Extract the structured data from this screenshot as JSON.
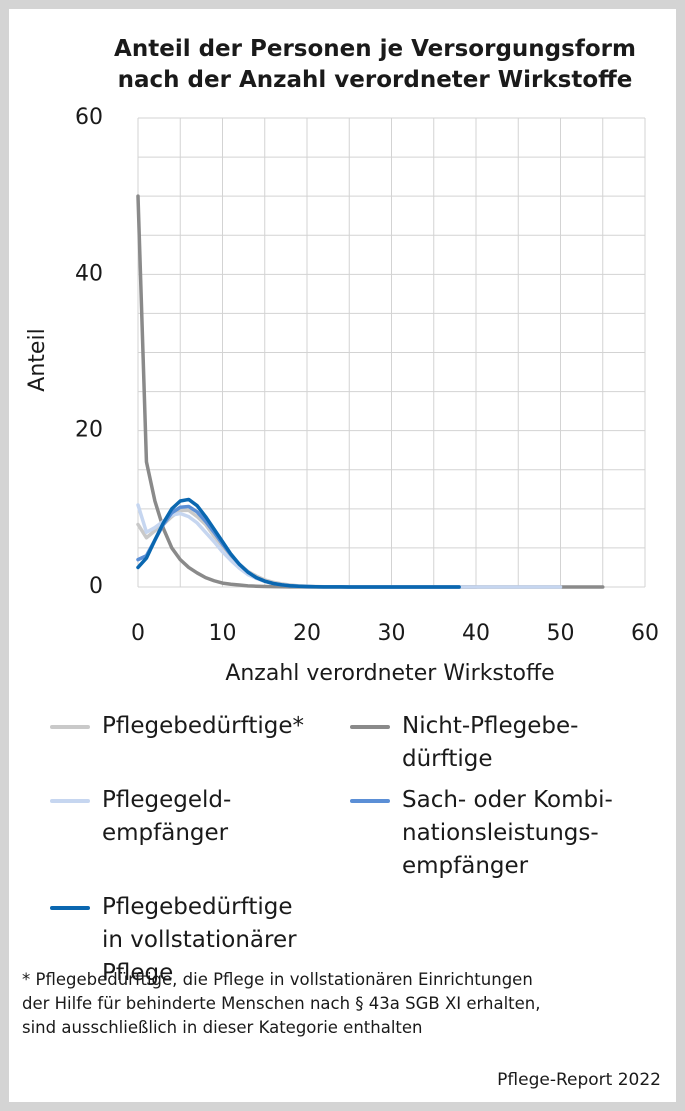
{
  "chart_data": {
    "type": "line",
    "title": "Anteil der Personen je Versorgungsform\nnach der Anzahl verordneter Wirkstoffe",
    "x_label": "Anzahl verordneter Wirkstoffe",
    "y_label": "Anteil",
    "x": [
      0,
      1,
      2,
      3,
      4,
      5,
      6,
      7,
      8,
      9,
      10,
      11,
      12,
      13,
      14,
      15,
      16,
      17,
      18,
      19,
      20,
      21,
      22,
      23,
      24,
      25,
      26,
      27,
      28,
      29,
      30,
      31,
      32,
      33,
      34,
      35,
      36,
      37,
      38,
      39,
      40,
      41,
      42,
      43,
      44,
      45,
      46,
      47,
      48,
      49,
      50,
      51,
      52,
      53,
      54,
      55
    ],
    "xlim": [
      0,
      60
    ],
    "xticks": [
      0,
      10,
      20,
      30,
      40,
      50,
      60
    ],
    "ylim": [
      0,
      60
    ],
    "yticks": [
      0,
      20,
      40,
      60
    ],
    "xgrid": [
      0,
      5,
      10,
      15,
      20,
      25,
      30,
      35,
      40,
      45,
      50,
      55,
      60
    ],
    "ygrid": [
      0,
      5,
      10,
      15,
      20,
      25,
      30,
      35,
      40,
      45,
      50,
      55,
      60
    ],
    "series": [
      {
        "name": "Pflegebedürftige*",
        "color": "#c9c9c9",
        "values": [
          8,
          6.3,
          7.2,
          8,
          9,
          9.8,
          9.8,
          9,
          8,
          6.5,
          5.2,
          4,
          2.9,
          2,
          1.4,
          0.9,
          0.6,
          0.4,
          0.25,
          0.15,
          0.1,
          0.06,
          0.04,
          0.02,
          0.01,
          0.01,
          0,
          0,
          0,
          0,
          0,
          0,
          0,
          0,
          0,
          0,
          0,
          0,
          0,
          0,
          0,
          null,
          null,
          null,
          null,
          null,
          null,
          null,
          null,
          null,
          null,
          null,
          null,
          null,
          null,
          null
        ]
      },
      {
        "name": "Nicht-Pflegebe-\ndürftige",
        "color": "#8a8a8a",
        "values": [
          50,
          16,
          11,
          7.5,
          5,
          3.5,
          2.5,
          1.8,
          1.2,
          0.8,
          0.5,
          0.35,
          0.25,
          0.15,
          0.1,
          0.07,
          0.05,
          0.03,
          0.02,
          0.01,
          0,
          0,
          0,
          0,
          0,
          0,
          0,
          0,
          0,
          0,
          0,
          0,
          0,
          0,
          0,
          0,
          0,
          0,
          0,
          0,
          0,
          0,
          0,
          0,
          0,
          0,
          0,
          0,
          0,
          0,
          0,
          0,
          0,
          0,
          0,
          0
        ]
      },
      {
        "name": "Pflegegeld-\nempfänger",
        "color": "#c6d6f0",
        "values": [
          10.5,
          7,
          7.6,
          8.4,
          9.2,
          9.4,
          9,
          8.2,
          7,
          5.8,
          4.5,
          3.4,
          2.4,
          1.6,
          1.1,
          0.7,
          0.45,
          0.3,
          0.18,
          0.1,
          0.06,
          0.04,
          0.02,
          0.01,
          0.01,
          0,
          0,
          0,
          0,
          0,
          0,
          0,
          0,
          0,
          0,
          0,
          0,
          0,
          0,
          0,
          0,
          0,
          0,
          0,
          0,
          0,
          0,
          0,
          0,
          0,
          0,
          null,
          null,
          null,
          null,
          null
        ]
      },
      {
        "name": "Sach- oder Kombi-\nnationsleistungs-\nempfänger",
        "color": "#5b8fd6",
        "values": [
          3.5,
          4,
          6,
          8,
          9.5,
          10.2,
          10.3,
          9.6,
          8.4,
          7,
          5.5,
          4.1,
          2.9,
          1.9,
          1.2,
          0.75,
          0.45,
          0.27,
          0.15,
          0.09,
          0.05,
          0.03,
          0.02,
          0.01,
          0.01,
          0,
          0,
          0,
          0,
          0,
          0,
          0,
          0,
          0,
          0,
          0,
          0,
          0,
          0,
          null,
          null,
          null,
          null,
          null,
          null,
          null,
          null,
          null,
          null,
          null,
          null,
          null,
          null,
          null,
          null,
          null
        ]
      },
      {
        "name": "Pflegebedürftige\nin vollstationärer\nPflege",
        "color": "#0a67b0",
        "values": [
          2.5,
          3.7,
          6,
          8.2,
          10,
          11,
          11.2,
          10.4,
          9,
          7.4,
          5.8,
          4.2,
          2.9,
          1.9,
          1.2,
          0.75,
          0.45,
          0.28,
          0.16,
          0.1,
          0.06,
          0.03,
          0.02,
          0.01,
          0.01,
          0,
          0,
          0,
          0,
          0,
          0,
          0,
          0,
          0,
          0,
          0,
          0,
          0,
          0,
          null,
          null,
          null,
          null,
          null,
          null,
          null,
          null,
          null,
          null,
          null,
          null,
          null,
          null,
          null,
          null,
          null
        ]
      }
    ],
    "footnote": "* Pflegebedürftige, die Pflege in vollstationären Einrichtungen\nder Hilfe für behinderte Menschen nach § 43a SGB XI erhalten,\nsind ausschließlich in dieser Kategorie enthalten",
    "source": "Pflege-Report 2022"
  }
}
